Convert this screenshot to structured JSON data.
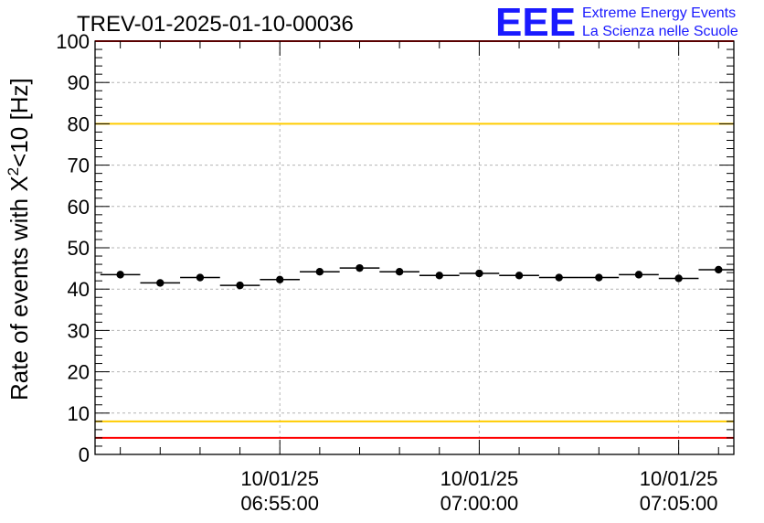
{
  "chart_data": {
    "type": "scatter",
    "title": "TREV-01-2025-01-10-00036",
    "ylabel_prefix": "Rate of events with X",
    "ylabel_sup": "2",
    "ylabel_suffix": "<10 [Hz]",
    "ylim": [
      0,
      100
    ],
    "y_ticks": [
      0,
      10,
      20,
      30,
      40,
      50,
      60,
      70,
      80,
      90,
      100
    ],
    "x_range_seconds": [
      -578,
      383
    ],
    "x_tick_labels": [
      {
        "t": -300,
        "date": "10/01/25",
        "time": "06:55:00"
      },
      {
        "t": 0,
        "date": "10/01/25",
        "time": "07:00:00"
      },
      {
        "t": 300,
        "date": "10/01/25",
        "time": "07:05:00"
      }
    ],
    "grid": true,
    "bin_width_seconds": 60,
    "series": [
      {
        "name": "rate",
        "x_seconds": [
          -540,
          -480,
          -420,
          -360,
          -300,
          -240,
          -180,
          -120,
          -60,
          0,
          60,
          120,
          180,
          240,
          300,
          360
        ],
        "values": [
          43.5,
          41.5,
          42.8,
          40.9,
          42.3,
          44.2,
          45.1,
          44.2,
          43.3,
          43.8,
          43.3,
          42.8,
          42.8,
          43.5,
          42.6,
          44.7
        ]
      }
    ],
    "reference_lines": [
      {
        "name": "upper-red",
        "y": 100,
        "color": "#ff0000"
      },
      {
        "name": "upper-yellow",
        "y": 80,
        "color": "#ffcc00"
      },
      {
        "name": "lower-yellow",
        "y": 8,
        "color": "#ffcc00"
      },
      {
        "name": "lower-red",
        "y": 4,
        "color": "#ff0000"
      }
    ]
  },
  "logo": {
    "mark": "EEE",
    "line1": "Extreme Energy Events",
    "line2": "La Scienza nelle Scuole",
    "color": "#1a1aff"
  }
}
